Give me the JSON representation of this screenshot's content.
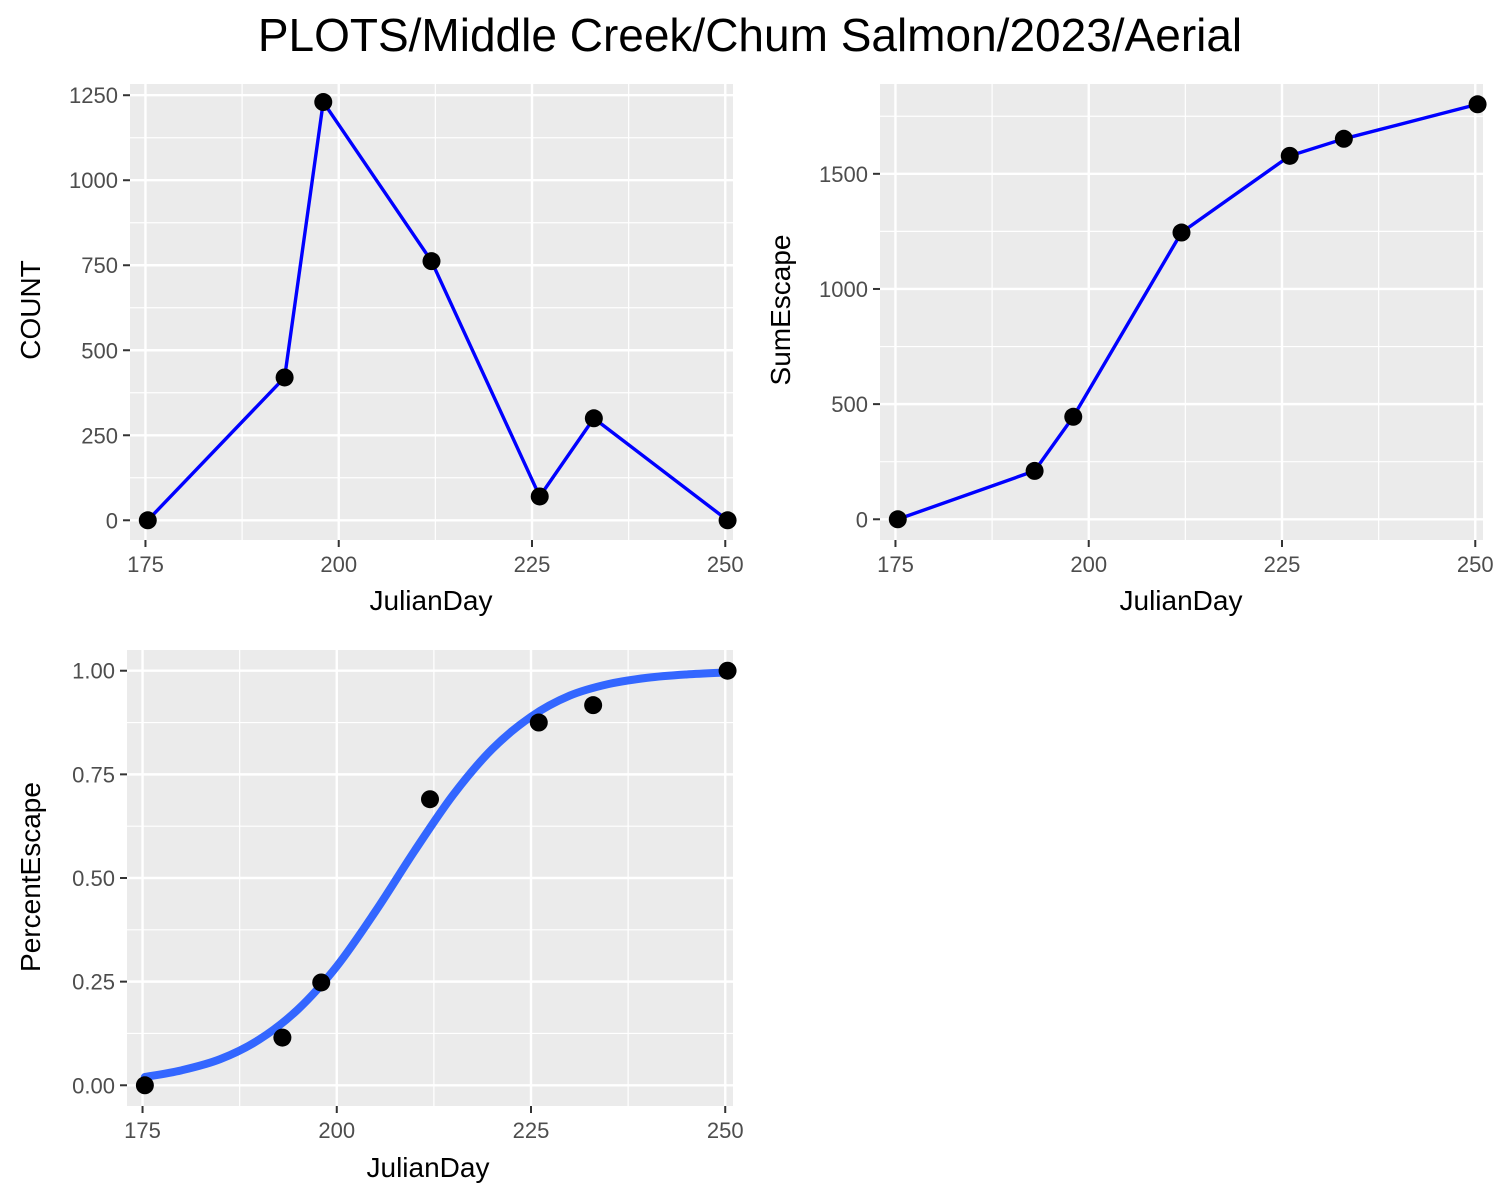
{
  "title": "PLOTS/Middle Creek/Chum Salmon/2023/Aerial",
  "colors": {
    "panel_background": "#ebebeb",
    "grid": "#ffffff",
    "line_blue": "#0000ff",
    "fit_blue": "#3366ff",
    "point": "#000000",
    "tick_label": "#4d4d4d",
    "axis_title": "#000000"
  },
  "chart_data": [
    {
      "type": "line",
      "xlabel": "JulianDay",
      "ylabel": "COUNT",
      "xlim": [
        173,
        251
      ],
      "ylim": [
        -58,
        1283
      ],
      "xticks": [
        175,
        200,
        225,
        250
      ],
      "yticks": [
        0,
        250,
        500,
        750,
        1000,
        1250
      ],
      "xtick_labels": [
        "175",
        "200",
        "225",
        "250"
      ],
      "ytick_labels": [
        "0",
        "250",
        "500",
        "750",
        "1000",
        "1250"
      ],
      "grid": true,
      "series": [
        {
          "x": [
            175.3,
            193,
            198,
            212,
            226,
            233,
            250.3
          ],
          "y": [
            0,
            420,
            1230,
            762,
            70,
            300,
            0
          ]
        }
      ]
    },
    {
      "type": "line",
      "xlabel": "JulianDay",
      "ylabel": "SumEscape",
      "xlim": [
        173,
        251
      ],
      "ylim": [
        -90,
        1890
      ],
      "xticks": [
        175,
        200,
        225,
        250
      ],
      "yticks": [
        0,
        500,
        1000,
        1500
      ],
      "xtick_labels": [
        "175",
        "200",
        "225",
        "250"
      ],
      "ytick_labels": [
        "0",
        "500",
        "1000",
        "1500"
      ],
      "grid": true,
      "series": [
        {
          "x": [
            175.3,
            193,
            198,
            212,
            226,
            233,
            250.3
          ],
          "y": [
            0,
            210,
            445,
            1245,
            1578,
            1652,
            1802
          ]
        }
      ]
    },
    {
      "type": "scatter",
      "xlabel": "JulianDay",
      "ylabel": "PercentEscape",
      "xlim": [
        173,
        251
      ],
      "ylim": [
        -0.05,
        1.05
      ],
      "xticks": [
        175,
        200,
        225,
        250
      ],
      "yticks": [
        0,
        0.25,
        0.5,
        0.75,
        1.0
      ],
      "xtick_labels": [
        "175",
        "200",
        "225",
        "250"
      ],
      "ytick_labels": [
        "0.00",
        "0.25",
        "0.50",
        "0.75",
        "1.00"
      ],
      "grid": true,
      "series": [
        {
          "x": [
            175.3,
            193,
            198,
            212,
            226,
            233,
            250.3
          ],
          "y": [
            0,
            0.115,
            0.248,
            0.69,
            0.875,
            0.917,
            1.0
          ]
        }
      ],
      "fit_curve": {
        "x": [
          175.3,
          180,
          185,
          190,
          195,
          200,
          205,
          210,
          215,
          220,
          225,
          230,
          235,
          240,
          245,
          250.3
        ],
        "y": [
          0.02,
          0.036,
          0.063,
          0.11,
          0.183,
          0.287,
          0.42,
          0.565,
          0.701,
          0.811,
          0.889,
          0.94,
          0.968,
          0.983,
          0.991,
          0.996
        ]
      }
    }
  ]
}
